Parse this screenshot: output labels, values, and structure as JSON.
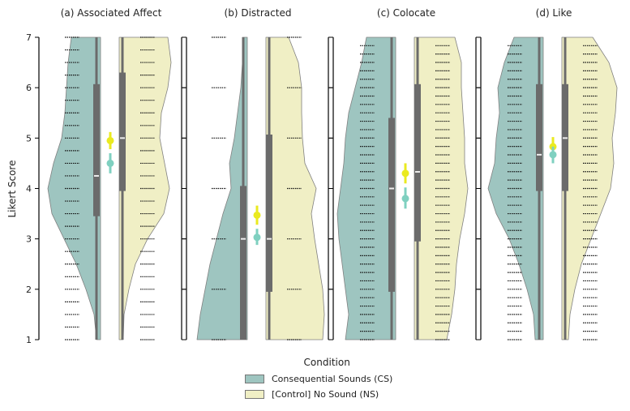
{
  "figure": {
    "ylabel": "Likert Score",
    "yticks": [
      1,
      2,
      3,
      4,
      5,
      6,
      7
    ]
  },
  "legend": {
    "title": "Condition",
    "items": [
      {
        "label": "Consequential Sounds (CS)",
        "color": "#9ec5c0"
      },
      {
        "label": "[Control] No Sound (NS)",
        "color": "#f0efc5"
      }
    ]
  },
  "colors": {
    "cs_fill": "#9ec5c0",
    "ns_fill": "#f0efc5",
    "box": "#6b6b6b",
    "cs_mean": "#7fd0c0",
    "ns_mean": "#eaea20",
    "outline": "#808080"
  },
  "chart_data": {
    "type": "violin",
    "title": "",
    "xlabel": "",
    "ylabel": "Likert Score",
    "ylim": [
      1,
      7
    ],
    "legend_position": "bottom-center",
    "series_names": [
      "Consequential Sounds (CS)",
      "[Control] No Sound (NS)"
    ],
    "panels": [
      {
        "title": "(a) Associated Affect",
        "CS": {
          "q1": 3.45,
          "median": 4.25,
          "q3": 6.07,
          "whisker_low": 1,
          "whisker_high": 7,
          "mean": 4.5,
          "ci": [
            4.3,
            4.7
          ]
        },
        "NS": {
          "q1": 3.95,
          "median": 5.0,
          "q3": 6.3,
          "whisker_low": 1,
          "whisker_high": 7,
          "mean": 4.95,
          "ci": [
            4.78,
            5.12
          ]
        }
      },
      {
        "title": "(b) Distracted",
        "CS": {
          "q1": 1,
          "median": 3.0,
          "q3": 4.05,
          "whisker_low": 1,
          "whisker_high": 7,
          "mean": 3.03,
          "ci": [
            2.88,
            3.2
          ]
        },
        "NS": {
          "q1": 1.95,
          "median": 3.0,
          "q3": 5.07,
          "whisker_low": 1,
          "whisker_high": 7,
          "mean": 3.47,
          "ci": [
            3.28,
            3.66
          ]
        }
      },
      {
        "title": "(c) Colocate",
        "CS": {
          "q1": 1.95,
          "median": 4.0,
          "q3": 5.4,
          "whisker_low": 1,
          "whisker_high": 7,
          "mean": 3.8,
          "ci": [
            3.6,
            4.02
          ]
        },
        "NS": {
          "q1": 2.95,
          "median": 4.33,
          "q3": 6.07,
          "whisker_low": 1,
          "whisker_high": 7,
          "mean": 4.3,
          "ci": [
            4.1,
            4.5
          ]
        }
      },
      {
        "title": "(d) Like",
        "CS": {
          "q1": 3.95,
          "median": 4.67,
          "q3": 6.07,
          "whisker_low": 1,
          "whisker_high": 7,
          "mean": 4.67,
          "ci": [
            4.5,
            4.83
          ]
        },
        "NS": {
          "q1": 3.95,
          "median": 5.0,
          "q3": 6.07,
          "whisker_low": 1,
          "whisker_high": 7,
          "mean": 4.83,
          "ci": [
            4.65,
            5.02
          ]
        }
      }
    ]
  }
}
